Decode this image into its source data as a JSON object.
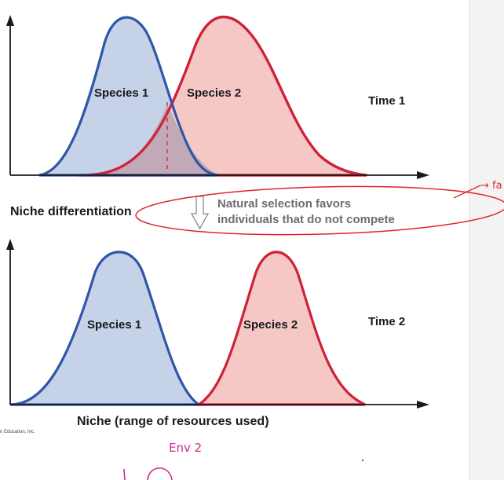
{
  "colors": {
    "species1_stroke": "#2f56a8",
    "species1_fill": "#c6d2e8",
    "species2_stroke": "#cf2139",
    "species2_fill": "#f5c8c6",
    "overlap_fill": "#c1a9b7",
    "axis": "#1a1a1a",
    "annotation_red": "#e0242f",
    "annotation_magenta": "#d0298f",
    "note_text": "#6d6d6d"
  },
  "panel1": {
    "species1_label": "Species 1",
    "species2_label": "Species 2",
    "time_label": "Time 1"
  },
  "middle": {
    "niche_differentiation": "Niche differentiation",
    "note_line1": "Natural selection favors",
    "note_line2": "individuals that do not compete"
  },
  "panel2": {
    "species1_label": "Species 1",
    "species2_label": "Species 2",
    "time_label": "Time 2",
    "x_axis_label": "Niche (range of resources used)"
  },
  "credit": "n Education, Inc.",
  "handwriting": {
    "env_label": "Env 2",
    "margin_scribble": "→ fa"
  }
}
